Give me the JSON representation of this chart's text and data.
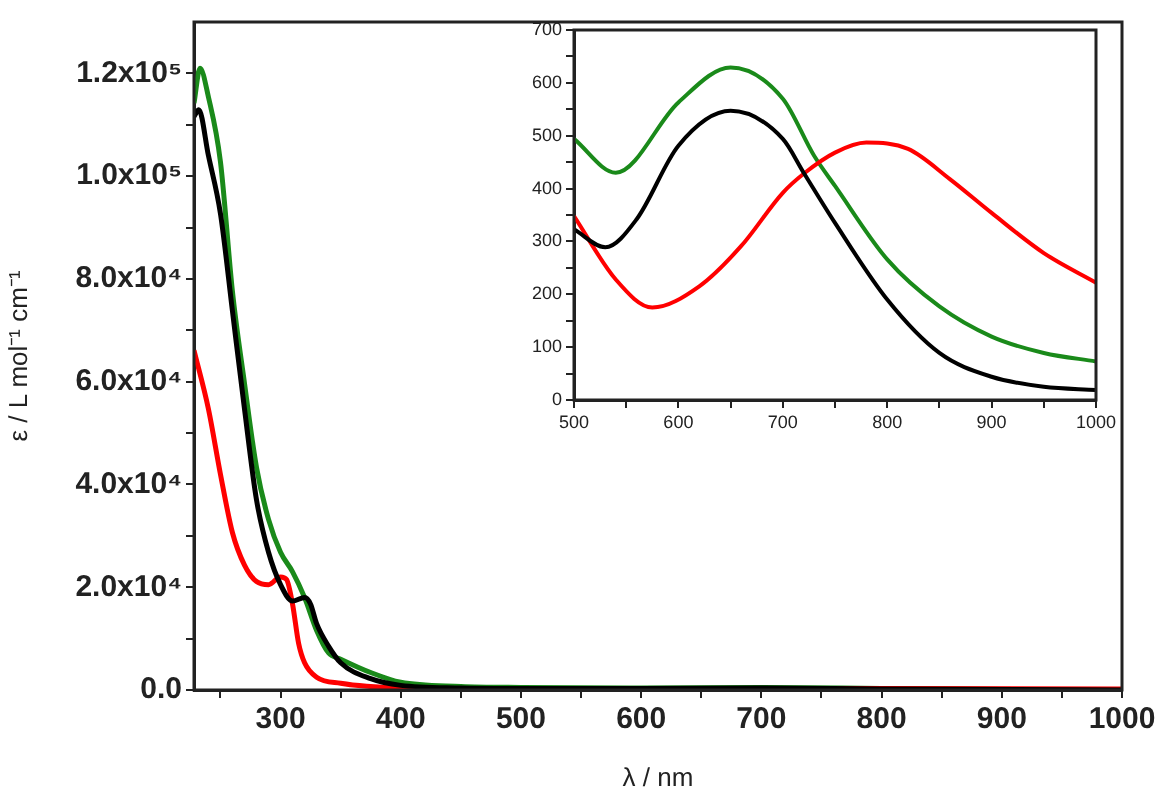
{
  "chart_data": [
    {
      "type": "line",
      "xlabel": "λ / nm",
      "ylabel": "ε / L mol⁻¹ cm⁻¹",
      "xlim": [
        228,
        1000
      ],
      "ylim": [
        0,
        130000
      ],
      "xticks": [
        {
          "value": 250,
          "label": null
        },
        300,
        {
          "value": 350,
          "label": null
        },
        400,
        {
          "value": 450,
          "label": null
        },
        500,
        {
          "value": 550,
          "label": null
        },
        600,
        {
          "value": 650,
          "label": null
        },
        700,
        {
          "value": 750,
          "label": null
        },
        800,
        {
          "value": 850,
          "label": null
        },
        900,
        {
          "value": 950,
          "label": null
        },
        1000
      ],
      "yticks": [
        {
          "value": 0,
          "label": "0.0"
        },
        {
          "value": 10000,
          "label": null
        },
        {
          "value": 20000,
          "label": "2.0x10⁴"
        },
        {
          "value": 30000,
          "label": null
        },
        {
          "value": 40000,
          "label": "4.0x10⁴"
        },
        {
          "value": 50000,
          "label": null
        },
        {
          "value": 60000,
          "label": "6.0x10⁴"
        },
        {
          "value": 70000,
          "label": null
        },
        {
          "value": 80000,
          "label": "8.0x10⁴"
        },
        {
          "value": 90000,
          "label": null
        },
        {
          "value": 100000,
          "label": "1.0x10⁵"
        },
        {
          "value": 110000,
          "label": null
        },
        {
          "value": 120000,
          "label": "1.2x10⁵"
        }
      ],
      "series": [
        {
          "color": "#000000",
          "x": [
            228,
            232,
            240,
            250,
            260,
            270,
            280,
            290,
            300,
            310,
            320,
            325,
            330,
            340,
            350,
            375,
            400,
            450,
            500,
            600,
            700,
            800,
            1000
          ],
          "values": [
            111600,
            112900,
            104000,
            92700,
            73700,
            54700,
            37000,
            26800,
            20500,
            17300,
            18000,
            16700,
            12900,
            8500,
            5300,
            2200,
            900,
            400,
            300,
            300,
            400,
            200,
            0
          ]
        },
        {
          "color": "#ff0000",
          "x": [
            228,
            240,
            250,
            260,
            270,
            280,
            290,
            300,
            305,
            310,
            315,
            320,
            330,
            350,
            400,
            500,
            800,
            1000
          ],
          "values": [
            66100,
            54700,
            42000,
            30600,
            24300,
            21100,
            20500,
            22000,
            21500,
            16700,
            9100,
            5300,
            2500,
            1300,
            400,
            200,
            300,
            200
          ]
        },
        {
          "color": "#1a8a1a",
          "x": [
            228,
            233,
            240,
            250,
            260,
            270,
            280,
            290,
            300,
            310,
            320,
            330,
            340,
            350,
            375,
            400,
            450,
            500,
            600,
            700,
            800,
            900,
            1000
          ],
          "values": [
            114200,
            121000,
            115400,
            102800,
            77500,
            59700,
            43300,
            33200,
            26800,
            23000,
            18000,
            11600,
            7200,
            6000,
            3400,
            1500,
            700,
            500,
            400,
            500,
            300,
            100,
            100
          ]
        }
      ]
    },
    {
      "type": "line",
      "xlim": [
        500,
        1000
      ],
      "ylim": [
        0,
        700
      ],
      "xticks": [
        500,
        {
          "value": 550,
          "label": null
        },
        600,
        {
          "value": 650,
          "label": null
        },
        700,
        {
          "value": 750,
          "label": null
        },
        800,
        {
          "value": 850,
          "label": null
        },
        900,
        {
          "value": 950,
          "label": null
        },
        1000
      ],
      "yticks": [
        0,
        {
          "value": 50,
          "label": null
        },
        100,
        {
          "value": 150,
          "label": null
        },
        200,
        {
          "value": 250,
          "label": null
        },
        300,
        {
          "value": 350,
          "label": null
        },
        400,
        {
          "value": 450,
          "label": null
        },
        500,
        {
          "value": 550,
          "label": null
        },
        600,
        {
          "value": 650,
          "label": null
        },
        700
      ],
      "series": [
        {
          "color": "#000000",
          "x": [
            500,
            530,
            560,
            600,
            650,
            700,
            720,
            750,
            800,
            850,
            900,
            950,
            1000
          ],
          "values": [
            323,
            289,
            342,
            481,
            547,
            494,
            430,
            335,
            190,
            89,
            44,
            25,
            19
          ]
        },
        {
          "color": "#ff0000",
          "x": [
            500,
            540,
            575,
            620,
            660,
            700,
            720,
            750,
            780,
            820,
            860,
            900,
            950,
            1000
          ],
          "values": [
            348,
            228,
            175,
            215,
            291,
            392,
            428,
            468,
            487,
            475,
            418,
            354,
            278,
            222
          ]
        },
        {
          "color": "#1a8a1a",
          "x": [
            500,
            540,
            600,
            650,
            700,
            730,
            750,
            800,
            850,
            900,
            950,
            1000
          ],
          "values": [
            494,
            430,
            563,
            629,
            570,
            462,
            405,
            266,
            177,
            120,
            89,
            73
          ]
        }
      ]
    }
  ]
}
